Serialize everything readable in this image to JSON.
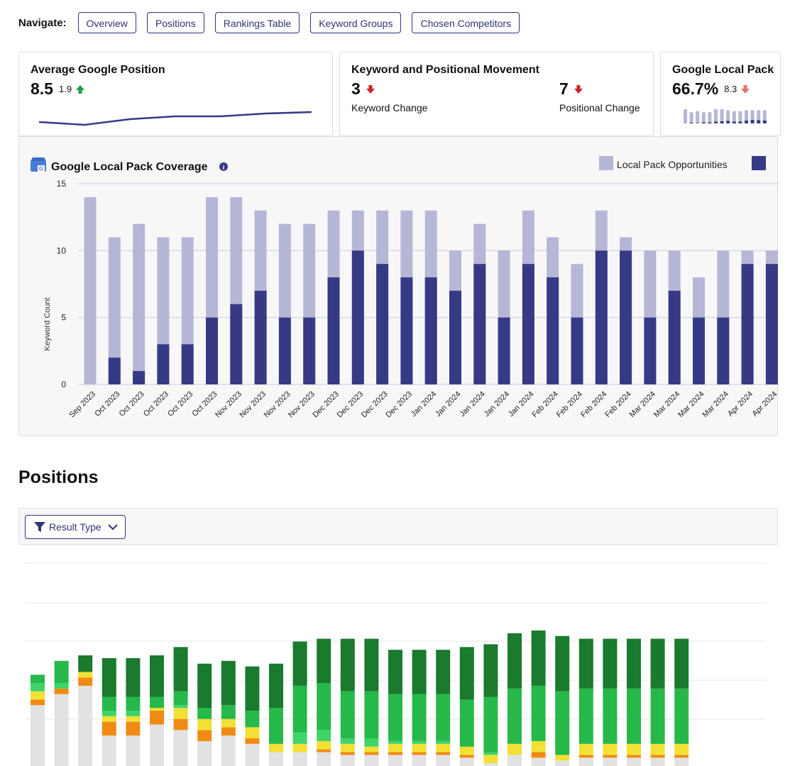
{
  "nav": {
    "label": "Navigate:",
    "items": [
      "Overview",
      "Positions",
      "Rankings Table",
      "Keyword Groups",
      "Chosen Competitors"
    ]
  },
  "cards": {
    "avg_position": {
      "title": "Average Google Position",
      "value": "8.5",
      "change": "1.9",
      "direction": "up",
      "trend": [
        9.2,
        9.4,
        9.0,
        8.8,
        8.8,
        8.6,
        8.5
      ]
    },
    "movement": {
      "title": "Keyword and Positional Movement",
      "keyword_value": "3",
      "keyword_label": "Keyword Change",
      "keyword_direction": "down",
      "positional_value": "7",
      "positional_label": "Positional Change",
      "positional_direction": "down"
    },
    "local_pack": {
      "title": "Google Local Pack",
      "value": "66.7%",
      "change": "8.3",
      "direction": "down",
      "mini_opportunities": [
        14,
        11,
        12,
        11,
        11,
        14,
        14,
        13,
        12,
        12,
        13,
        13,
        13,
        13
      ],
      "mini_coverage": [
        0,
        2,
        1,
        3,
        3,
        5,
        6,
        7,
        5,
        5,
        8,
        10,
        9,
        8
      ]
    }
  },
  "colors": {
    "navy": "#363a85",
    "lavender": "#b6b6d6",
    "green_up": "#1e9e3a",
    "red_down": "#d32020",
    "pos_dark_green": "#1a7a2e",
    "pos_green": "#27b84a",
    "pos_light_green": "#3fd46a",
    "pos_yellow": "#f2e035",
    "pos_orange": "#ef8b14",
    "pos_grey": "#e2e2e2"
  },
  "chart_data": {
    "type": "bar",
    "title": "Google Local Pack Coverage",
    "ylabel": "Keyword Count",
    "xlabel": "",
    "ylim": [
      0,
      15
    ],
    "yticks": [
      0,
      5,
      10,
      15
    ],
    "grid": true,
    "legend_position": "top-right",
    "categories": [
      "Sep 2023",
      "Oct 2023",
      "Oct 2023",
      "Oct 2023",
      "Oct 2023",
      "Oct 2023",
      "Nov 2023",
      "Nov 2023",
      "Nov 2023",
      "Nov 2023",
      "Dec 2023",
      "Dec 2023",
      "Dec 2023",
      "Dec 2023",
      "Jan 2024",
      "Jan 2024",
      "Jan 2024",
      "Jan 2024",
      "Jan 2024",
      "Feb 2024",
      "Feb 2024",
      "Feb 2024",
      "Feb 2024",
      "Mar 2024",
      "Mar 2024",
      "Mar 2024",
      "Mar 2024",
      "Apr 2024",
      "Apr 2024"
    ],
    "series": [
      {
        "name": "Local Pack Opportunities",
        "values": [
          14,
          11,
          12,
          11,
          11,
          14,
          14,
          13,
          12,
          12,
          13,
          13,
          13,
          13,
          13,
          10,
          12,
          10,
          13,
          11,
          9,
          13,
          11,
          10,
          10,
          8,
          10,
          10,
          10
        ]
      },
      {
        "name": "",
        "values": [
          0,
          2,
          1,
          3,
          3,
          5,
          6,
          7,
          5,
          5,
          8,
          10,
          9,
          8,
          8,
          7,
          9,
          5,
          9,
          8,
          5,
          10,
          10,
          5,
          7,
          5,
          5,
          9,
          9
        ]
      }
    ]
  },
  "positions": {
    "title": "Positions",
    "filter_label": "Result Type",
    "stacks": [
      [
        22,
        2,
        3,
        3,
        3,
        0
      ],
      [
        26,
        2,
        0,
        2,
        8,
        0
      ],
      [
        29,
        3,
        2,
        0,
        0,
        6
      ],
      [
        11,
        5,
        2,
        2,
        5,
        14
      ],
      [
        11,
        5,
        2,
        2,
        5,
        14
      ],
      [
        15,
        5,
        1,
        0,
        4,
        15
      ],
      [
        13,
        4,
        4,
        1,
        5,
        16
      ],
      [
        9,
        4,
        4,
        0,
        4,
        16
      ],
      [
        11,
        3,
        3,
        0,
        5,
        16
      ],
      [
        8,
        2,
        4,
        0,
        6,
        16
      ],
      [
        5,
        0,
        3,
        0,
        13,
        16
      ],
      [
        5,
        0,
        3,
        4,
        17,
        16
      ],
      [
        5,
        1,
        3,
        4,
        17,
        16
      ],
      [
        4,
        1,
        3,
        2,
        17,
        19
      ],
      [
        4,
        1,
        2,
        3,
        17,
        19
      ],
      [
        4,
        1,
        3,
        1,
        17,
        16
      ],
      [
        4,
        1,
        3,
        1,
        17,
        16
      ],
      [
        4,
        1,
        3,
        1,
        17,
        16
      ],
      [
        3,
        1,
        3,
        0,
        17,
        19
      ],
      [
        1,
        0,
        3,
        1,
        20,
        19
      ],
      [
        4,
        0,
        4,
        0,
        20,
        20
      ],
      [
        3,
        2,
        4,
        0,
        20,
        20
      ],
      [
        2,
        0,
        2,
        0,
        23,
        20
      ],
      [
        3,
        1,
        4,
        0,
        20,
        18
      ],
      [
        3,
        1,
        4,
        0,
        20,
        18
      ],
      [
        3,
        1,
        4,
        0,
        20,
        18
      ],
      [
        3,
        1,
        4,
        0,
        20,
        18
      ],
      [
        3,
        1,
        4,
        0,
        20,
        18
      ]
    ]
  }
}
